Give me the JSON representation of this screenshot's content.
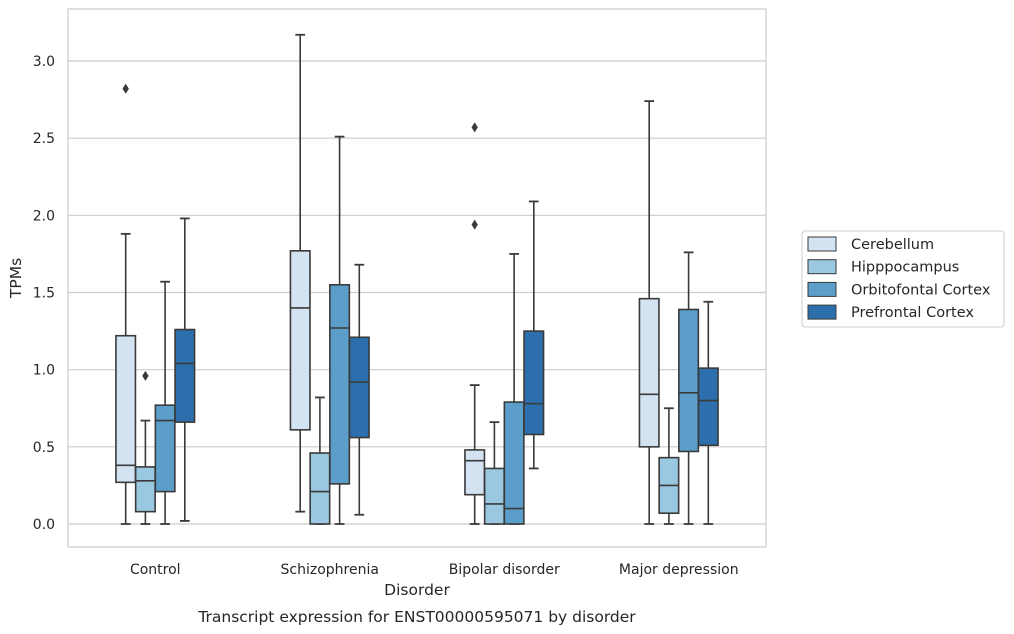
{
  "chart_data": {
    "type": "box",
    "caption": "Transcript expression for ENST00000595071 by disorder",
    "xlabel": "Disorder",
    "ylabel": "TPMs",
    "ylim": [
      -0.15,
      3.33
    ],
    "yticks": [
      0.0,
      0.5,
      1.0,
      1.5,
      2.0,
      2.5,
      3.0
    ],
    "ytick_labels": [
      "0.0",
      "0.5",
      "1.0",
      "1.5",
      "2.0",
      "2.5",
      "3.0"
    ],
    "grid": "horizontal",
    "legend_position": "right",
    "categories": [
      "Control",
      "Schizophrenia",
      "Bipolar disorder",
      "Major depression"
    ],
    "series": [
      {
        "name": "Cerebellum",
        "color": "#d3e3f1",
        "boxes": [
          {
            "whislo": 0.0,
            "q1": 0.27,
            "med": 0.38,
            "q3": 1.22,
            "whishi": 1.88,
            "fliers": [
              2.82
            ]
          },
          {
            "whislo": 0.08,
            "q1": 0.61,
            "med": 1.4,
            "q3": 1.77,
            "whishi": 3.17,
            "fliers": []
          },
          {
            "whislo": 0.0,
            "q1": 0.19,
            "med": 0.41,
            "q3": 0.48,
            "whishi": 0.9,
            "fliers": [
              1.94,
              2.57
            ]
          },
          {
            "whislo": 0.0,
            "q1": 0.5,
            "med": 0.84,
            "q3": 1.46,
            "whishi": 2.74,
            "fliers": []
          }
        ]
      },
      {
        "name": "Hipppocampus",
        "color": "#9ac8e0",
        "boxes": [
          {
            "whislo": 0.0,
            "q1": 0.08,
            "med": 0.28,
            "q3": 0.37,
            "whishi": 0.67,
            "fliers": [
              0.96
            ]
          },
          {
            "whislo": 0.0,
            "q1": 0.0,
            "med": 0.21,
            "q3": 0.46,
            "whishi": 0.82,
            "fliers": []
          },
          {
            "whislo": 0.0,
            "q1": 0.0,
            "med": 0.13,
            "q3": 0.36,
            "whishi": 0.66,
            "fliers": []
          },
          {
            "whislo": 0.0,
            "q1": 0.07,
            "med": 0.25,
            "q3": 0.43,
            "whishi": 0.75,
            "fliers": []
          }
        ]
      },
      {
        "name": "Orbitofontal Cortex",
        "color": "#5a9ec9",
        "boxes": [
          {
            "whislo": 0.0,
            "q1": 0.21,
            "med": 0.67,
            "q3": 0.77,
            "whishi": 1.57,
            "fliers": []
          },
          {
            "whislo": 0.0,
            "q1": 0.26,
            "med": 1.27,
            "q3": 1.55,
            "whishi": 2.51,
            "fliers": []
          },
          {
            "whislo": 0.0,
            "q1": 0.0,
            "med": 0.1,
            "q3": 0.79,
            "whishi": 1.75,
            "fliers": []
          },
          {
            "whislo": 0.0,
            "q1": 0.47,
            "med": 0.85,
            "q3": 1.39,
            "whishi": 1.76,
            "fliers": []
          }
        ]
      },
      {
        "name": "Prefrontal Cortex",
        "color": "#2d6fac",
        "boxes": [
          {
            "whislo": 0.02,
            "q1": 0.66,
            "med": 1.04,
            "q3": 1.26,
            "whishi": 1.98,
            "fliers": []
          },
          {
            "whislo": 0.06,
            "q1": 0.56,
            "med": 0.92,
            "q3": 1.21,
            "whishi": 1.68,
            "fliers": []
          },
          {
            "whislo": 0.36,
            "q1": 0.58,
            "med": 0.78,
            "q3": 1.25,
            "whishi": 2.09,
            "fliers": []
          },
          {
            "whislo": 0.0,
            "q1": 0.51,
            "med": 0.8,
            "q3": 1.01,
            "whishi": 1.44,
            "fliers": []
          }
        ]
      }
    ]
  }
}
